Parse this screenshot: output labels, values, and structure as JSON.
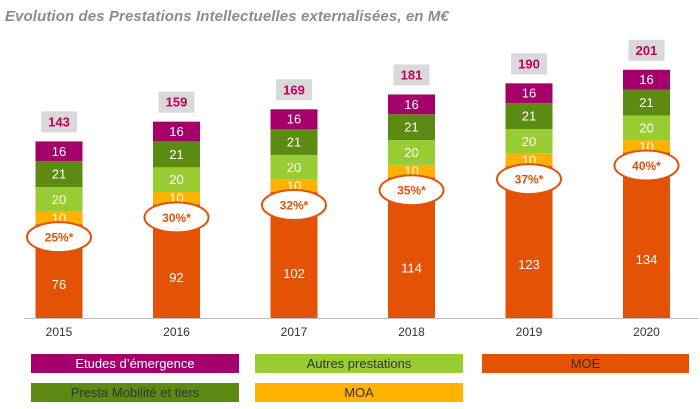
{
  "chart_data": {
    "type": "bar",
    "stacked": true,
    "title": "Evolution des Prestations Intellectuelles  externalisées,  en M€",
    "categories": [
      "2015",
      "2016",
      "2017",
      "2018",
      "2019",
      "2020"
    ],
    "series": [
      {
        "name": "MOE",
        "color": "#e35205",
        "values": [
          76,
          92,
          102,
          114,
          123,
          134
        ]
      },
      {
        "name": "MOA",
        "color": "#ffb300",
        "values": [
          10,
          10,
          10,
          10,
          10,
          10
        ]
      },
      {
        "name": "Autres prestations",
        "color": "#99cc33",
        "values": [
          20,
          20,
          20,
          20,
          20,
          20
        ]
      },
      {
        "name": "Presta Mobilité et tiers",
        "color": "#5c8a12",
        "values": [
          21,
          21,
          21,
          21,
          21,
          21
        ]
      },
      {
        "name": "Etudes d’émergence",
        "color": "#a3006b",
        "values": [
          16,
          16,
          16,
          16,
          16,
          16
        ]
      }
    ],
    "totals": [
      143,
      159,
      169,
      181,
      190,
      201
    ],
    "percent_labels": [
      "25%*",
      "30%*",
      "32%*",
      "35%*",
      "37%*",
      "40%*"
    ],
    "ylim": [
      0,
      205
    ],
    "grid": false,
    "legend": {
      "placement": "bottom"
    }
  }
}
